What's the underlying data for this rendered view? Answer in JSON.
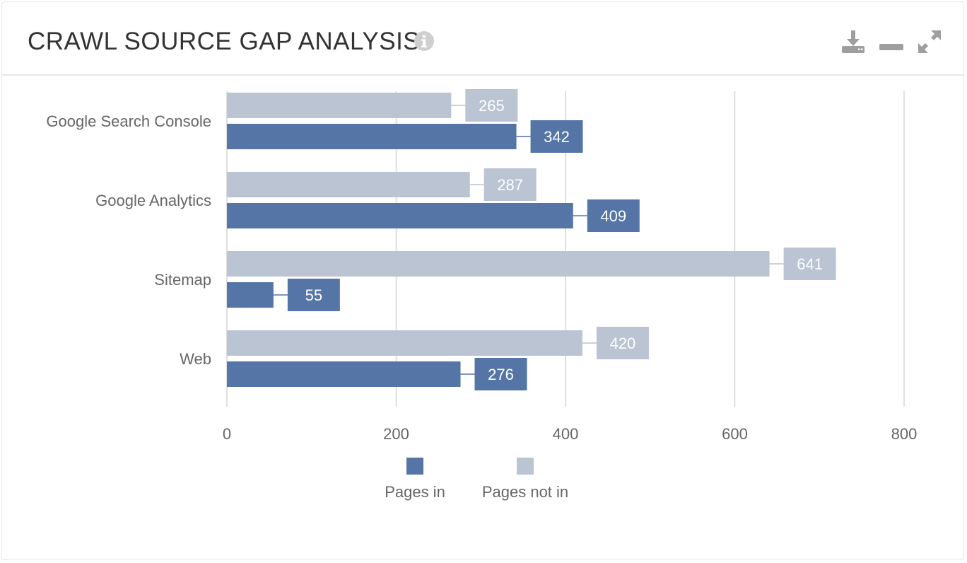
{
  "header": {
    "title": "CRAWL SOURCE GAP ANALYSIS",
    "info_icon": "info-circle-icon",
    "tools": [
      {
        "name": "download-icon"
      },
      {
        "name": "minimize-icon"
      },
      {
        "name": "expand-icon"
      }
    ]
  },
  "colors": {
    "pages_in": "#5475a5",
    "pages_not_in": "#bac4d3",
    "grid": "#d5d5d5",
    "axis_text": "#666666",
    "icon": "#9e9e9e"
  },
  "chart_data": {
    "type": "bar",
    "orientation": "horizontal",
    "categories": [
      "Google Search Console",
      "Google Analytics",
      "Sitemap",
      "Web"
    ],
    "series": [
      {
        "name": "Pages not in",
        "values": [
          265,
          287,
          641,
          420
        ]
      },
      {
        "name": "Pages in",
        "values": [
          342,
          409,
          55,
          276
        ]
      }
    ],
    "xlim": [
      0,
      800
    ],
    "xticks": [
      0,
      200,
      400,
      600,
      800
    ],
    "grid": true,
    "data_labels": true,
    "legend": {
      "position": "bottom",
      "items": [
        {
          "label": "Pages in",
          "series": "Pages in"
        },
        {
          "label": "Pages not in",
          "series": "Pages not in"
        }
      ]
    }
  }
}
